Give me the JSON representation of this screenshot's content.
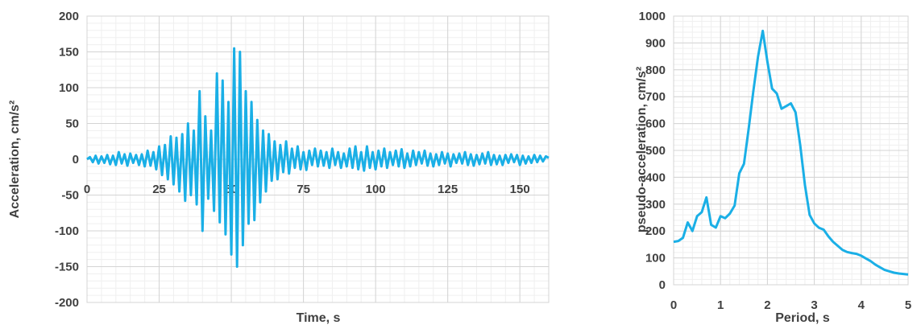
{
  "chart_data": [
    {
      "type": "line",
      "xlabel": "Time, s",
      "ylabel": "Acceleration, cm/s²",
      "xlim": [
        0,
        160
      ],
      "ylim": [
        -200,
        200
      ],
      "x_ticks": [
        "0",
        "25",
        "50",
        "75",
        "100",
        "125",
        "150"
      ],
      "y_ticks": [
        "-200",
        "-150",
        "-100",
        "-50",
        "0",
        "50",
        "100",
        "150",
        "200"
      ],
      "grid": true,
      "legend": "none",
      "line_color": "#1aafe6",
      "series": [
        {
          "x": [
            0,
            1,
            2,
            3,
            4,
            5,
            6,
            7,
            8,
            9,
            10,
            11,
            12,
            13,
            14,
            15,
            16,
            17,
            18,
            19,
            20,
            21,
            22,
            23,
            24,
            25,
            26,
            27,
            28,
            29,
            30,
            31,
            32,
            33,
            34,
            35,
            36,
            37,
            38,
            39,
            40,
            41,
            42,
            43,
            44,
            45,
            46,
            47,
            48,
            49,
            50,
            51,
            52,
            53,
            54,
            55,
            56,
            57,
            58,
            59,
            60,
            61,
            62,
            63,
            64,
            65,
            66,
            67,
            68,
            69,
            70,
            71,
            72,
            73,
            74,
            75,
            76,
            77,
            78,
            79,
            80,
            81,
            82,
            83,
            84,
            85,
            86,
            87,
            88,
            89,
            90,
            91,
            92,
            93,
            94,
            95,
            96,
            97,
            98,
            99,
            100,
            101,
            102,
            103,
            104,
            105,
            106,
            107,
            108,
            109,
            110,
            111,
            112,
            113,
            114,
            115,
            116,
            117,
            118,
            119,
            120,
            121,
            122,
            123,
            124,
            125,
            126,
            127,
            128,
            129,
            130,
            131,
            132,
            133,
            134,
            135,
            136,
            137,
            138,
            139,
            140,
            141,
            142,
            143,
            144,
            145,
            146,
            147,
            148,
            149,
            150,
            151,
            152,
            153,
            154,
            155,
            156,
            157,
            158,
            159,
            160
          ],
          "y": [
            0,
            3,
            -4,
            5,
            -6,
            4,
            -5,
            6,
            -7,
            5,
            -8,
            10,
            -6,
            7,
            -9,
            8,
            -5,
            6,
            -8,
            7,
            -10,
            12,
            -9,
            10,
            -14,
            18,
            -22,
            20,
            -28,
            32,
            -35,
            30,
            -45,
            35,
            -58,
            50,
            -50,
            40,
            -63,
            95,
            -100,
            60,
            -55,
            40,
            -72,
            120,
            -88,
            110,
            -105,
            80,
            -133,
            155,
            -150,
            150,
            -120,
            95,
            -90,
            80,
            -85,
            55,
            -60,
            40,
            -45,
            35,
            -30,
            25,
            -28,
            20,
            -18,
            25,
            -20,
            15,
            -12,
            18,
            -14,
            10,
            -15,
            12,
            -8,
            15,
            -10,
            12,
            -9,
            10,
            -12,
            15,
            -8,
            10,
            -12,
            8,
            -10,
            15,
            -12,
            18,
            -14,
            10,
            -16,
            18,
            -12,
            10,
            -14,
            12,
            -10,
            15,
            -12,
            10,
            -8,
            12,
            -10,
            14,
            -12,
            8,
            -10,
            12,
            -8,
            10,
            -6,
            12,
            -9,
            8,
            -10,
            7,
            -8,
            10,
            -6,
            8,
            -10,
            7,
            -5,
            8,
            -6,
            10,
            -8,
            7,
            -9,
            6,
            -7,
            8,
            -6,
            10,
            -8,
            6,
            -7,
            5,
            -8,
            6,
            -5,
            7,
            -4,
            6,
            -8,
            5,
            -6,
            4,
            -5,
            6,
            -4,
            5,
            -3,
            4,
            2
          ]
        }
      ]
    },
    {
      "type": "line",
      "xlabel": "Period, s",
      "ylabel": "pseudo-acceleration, cm/s²",
      "xlim": [
        0,
        5
      ],
      "ylim": [
        0,
        1000
      ],
      "x_ticks": [
        "0",
        "1",
        "2",
        "3",
        "4",
        "5"
      ],
      "y_ticks": [
        "0",
        "100",
        "200",
        "300",
        "400",
        "500",
        "600",
        "700",
        "800",
        "900",
        "1000"
      ],
      "grid": true,
      "legend": "none",
      "line_color": "#1aafe6",
      "series": [
        {
          "x": [
            0.0,
            0.1,
            0.2,
            0.3,
            0.4,
            0.5,
            0.6,
            0.7,
            0.8,
            0.9,
            1.0,
            1.1,
            1.2,
            1.3,
            1.4,
            1.5,
            1.6,
            1.7,
            1.8,
            1.9,
            2.0,
            2.1,
            2.2,
            2.3,
            2.4,
            2.5,
            2.6,
            2.7,
            2.8,
            2.9,
            3.0,
            3.1,
            3.2,
            3.3,
            3.4,
            3.5,
            3.6,
            3.7,
            3.8,
            3.9,
            4.0,
            4.1,
            4.2,
            4.3,
            4.4,
            4.5,
            4.6,
            4.7,
            4.8,
            4.9,
            5.0
          ],
          "y": [
            160,
            163,
            175,
            232,
            200,
            255,
            270,
            325,
            223,
            213,
            255,
            248,
            265,
            295,
            415,
            450,
            580,
            720,
            850,
            945,
            830,
            730,
            712,
            655,
            665,
            675,
            642,
            520,
            370,
            260,
            228,
            212,
            205,
            180,
            160,
            145,
            130,
            122,
            118,
            115,
            108,
            98,
            88,
            75,
            65,
            55,
            50,
            45,
            42,
            40,
            38
          ]
        }
      ]
    }
  ]
}
